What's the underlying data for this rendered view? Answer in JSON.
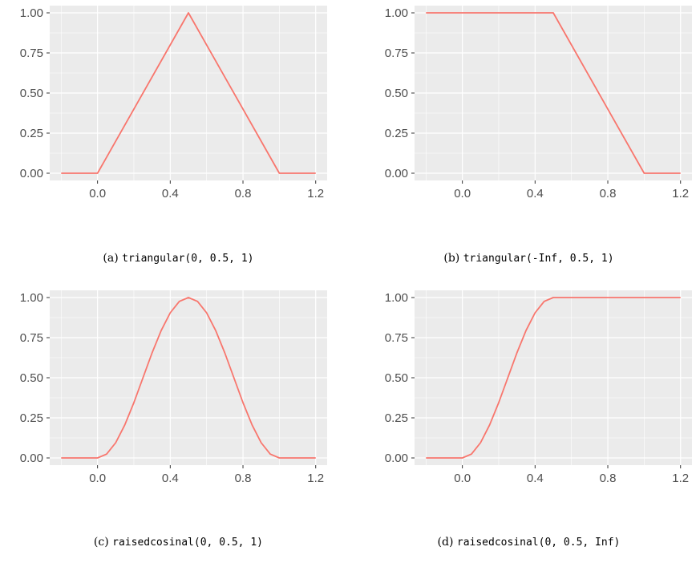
{
  "chart_data": [
    {
      "type": "line",
      "id": "a",
      "caption_label": "(a)",
      "caption_code": "triangular(0, 0.5, 1)",
      "xlabel": "",
      "ylabel": "",
      "xlim": [
        -0.2,
        1.2
      ],
      "ylim": [
        0,
        1
      ],
      "x_ticks": [
        0.0,
        0.4,
        0.8,
        1.2
      ],
      "x_tick_labels": [
        "0.0",
        "0.4",
        "0.8",
        "1.2"
      ],
      "y_ticks": [
        0,
        0.25,
        0.5,
        0.75,
        1.0
      ],
      "y_tick_labels": [
        "0.00",
        "0.25",
        "0.50",
        "0.75",
        "1.00"
      ],
      "grid": true,
      "series": [
        {
          "color": "#F8766D",
          "x": [
            -0.2,
            0.0,
            0.5,
            1.0,
            1.2
          ],
          "y": [
            0,
            0,
            1,
            0,
            0
          ]
        }
      ]
    },
    {
      "type": "line",
      "id": "b",
      "caption_label": "(b)",
      "caption_code": "triangular(-Inf, 0.5, 1)",
      "xlabel": "",
      "ylabel": "",
      "xlim": [
        -0.2,
        1.2
      ],
      "ylim": [
        0,
        1
      ],
      "x_ticks": [
        0.0,
        0.4,
        0.8,
        1.2
      ],
      "x_tick_labels": [
        "0.0",
        "0.4",
        "0.8",
        "1.2"
      ],
      "y_ticks": [
        0,
        0.25,
        0.5,
        0.75,
        1.0
      ],
      "y_tick_labels": [
        "0.00",
        "0.25",
        "0.50",
        "0.75",
        "1.00"
      ],
      "grid": true,
      "series": [
        {
          "color": "#F8766D",
          "x": [
            -0.2,
            0.5,
            1.0,
            1.2
          ],
          "y": [
            1,
            1,
            0,
            0
          ]
        }
      ]
    },
    {
      "type": "line",
      "id": "c",
      "caption_label": "(c)",
      "caption_code": "raisedcosinal(0, 0.5, 1)",
      "xlabel": "",
      "ylabel": "",
      "xlim": [
        -0.2,
        1.2
      ],
      "ylim": [
        0,
        1
      ],
      "x_ticks": [
        0.0,
        0.4,
        0.8,
        1.2
      ],
      "x_tick_labels": [
        "0.0",
        "0.4",
        "0.8",
        "1.2"
      ],
      "y_ticks": [
        0,
        0.25,
        0.5,
        0.75,
        1.0
      ],
      "y_tick_labels": [
        "0.00",
        "0.25",
        "0.50",
        "0.75",
        "1.00"
      ],
      "grid": true,
      "series": [
        {
          "color": "#F8766D",
          "x": [
            -0.2,
            -0.1,
            0.0,
            0.05,
            0.1,
            0.15,
            0.2,
            0.25,
            0.3,
            0.35,
            0.4,
            0.45,
            0.5,
            0.55,
            0.6,
            0.65,
            0.7,
            0.75,
            0.8,
            0.85,
            0.9,
            0.95,
            1.0,
            1.1,
            1.2
          ],
          "y": [
            0,
            0,
            0,
            0.024,
            0.095,
            0.206,
            0.345,
            0.5,
            0.655,
            0.794,
            0.905,
            0.976,
            1,
            0.976,
            0.905,
            0.794,
            0.655,
            0.5,
            0.345,
            0.206,
            0.095,
            0.024,
            0,
            0,
            0
          ]
        }
      ]
    },
    {
      "type": "line",
      "id": "d",
      "caption_label": "(d)",
      "caption_code": "raisedcosinal(0, 0.5, Inf)",
      "xlabel": "",
      "ylabel": "",
      "xlim": [
        -0.2,
        1.2
      ],
      "ylim": [
        0,
        1
      ],
      "x_ticks": [
        0.0,
        0.4,
        0.8,
        1.2
      ],
      "x_tick_labels": [
        "0.0",
        "0.4",
        "0.8",
        "1.2"
      ],
      "y_ticks": [
        0,
        0.25,
        0.5,
        0.75,
        1.0
      ],
      "y_tick_labels": [
        "0.00",
        "0.25",
        "0.50",
        "0.75",
        "1.00"
      ],
      "grid": true,
      "series": [
        {
          "color": "#F8766D",
          "x": [
            -0.2,
            -0.1,
            0.0,
            0.05,
            0.1,
            0.15,
            0.2,
            0.25,
            0.3,
            0.35,
            0.4,
            0.45,
            0.5,
            0.6,
            0.8,
            1.0,
            1.2
          ],
          "y": [
            0,
            0,
            0,
            0.024,
            0.095,
            0.206,
            0.345,
            0.5,
            0.655,
            0.794,
            0.905,
            0.976,
            1,
            1,
            1,
            1,
            1
          ]
        }
      ]
    }
  ]
}
